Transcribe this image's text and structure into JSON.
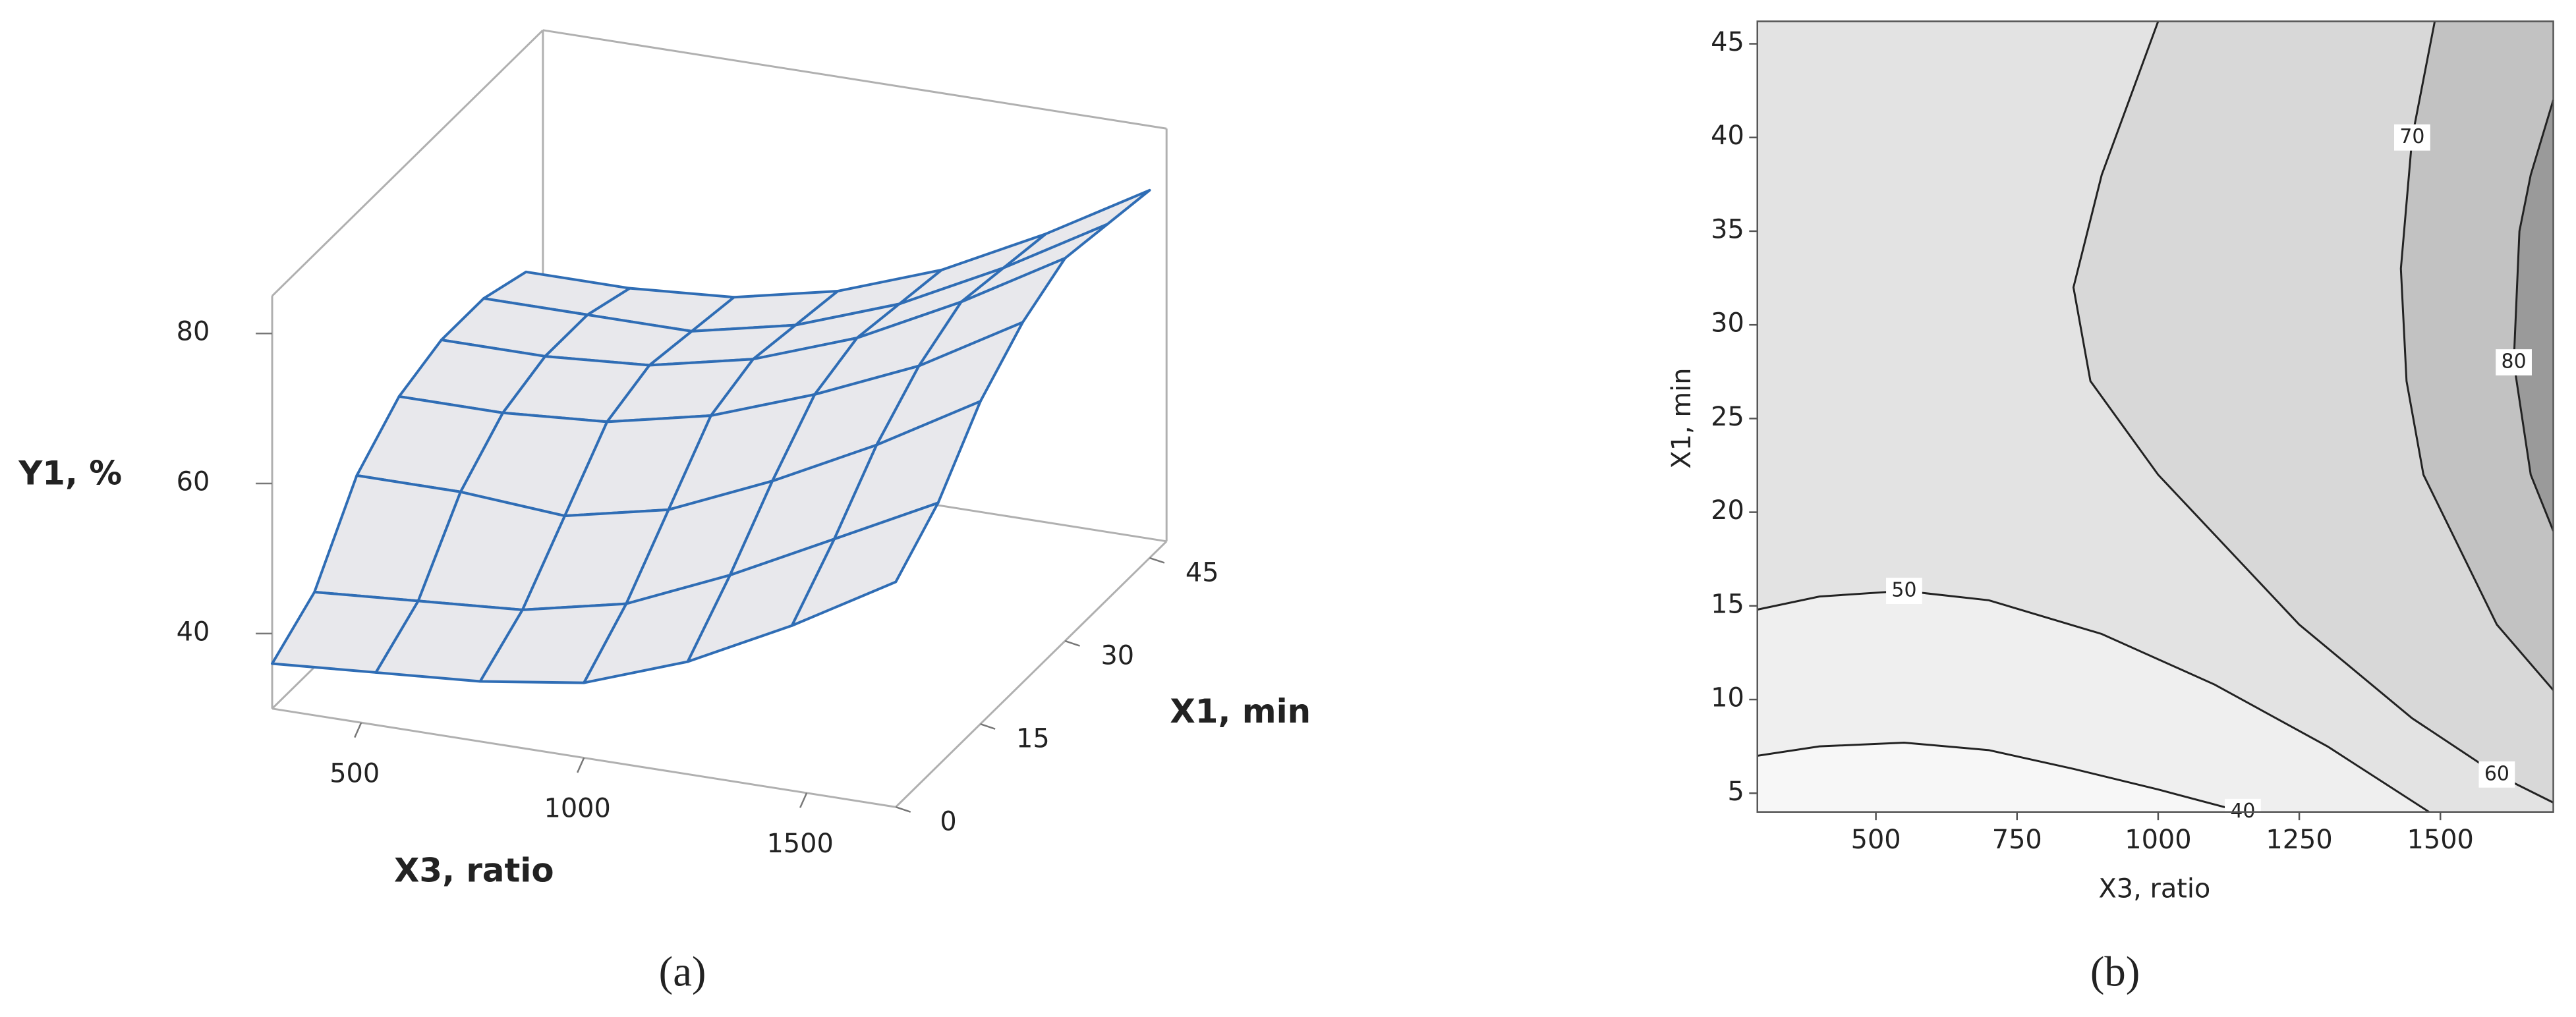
{
  "chart_data": [
    {
      "type": "surface",
      "caption": "(a)",
      "xlabel": "X3, ratio",
      "ylabel": "X1, min",
      "zlabel": "Y1, %",
      "x": [
        300,
        533,
        767,
        1000,
        1233,
        1467,
        1700
      ],
      "y": [
        0,
        7.5,
        15,
        22.5,
        30,
        37.5,
        45
      ],
      "z": [
        [
          36,
          37,
          38,
          40,
          45,
          52,
          60
        ],
        [
          40,
          41,
          42,
          45,
          51,
          58,
          65
        ],
        [
          50,
          50,
          49,
          52,
          58,
          65,
          73
        ],
        [
          55,
          55,
          56,
          59,
          64,
          70,
          78
        ],
        [
          57,
          57,
          58,
          61,
          66,
          73,
          81
        ],
        [
          57,
          57,
          57,
          60,
          65,
          72,
          80
        ],
        [
          55,
          55,
          56,
          59,
          64,
          71,
          79
        ]
      ],
      "xlim": [
        300,
        1700
      ],
      "ylim": [
        0,
        48
      ],
      "zlim": [
        30,
        85
      ],
      "xticks": [
        500,
        1000,
        1500
      ],
      "yticks": [
        0,
        15,
        30,
        45
      ],
      "zticks": [
        40,
        60,
        80
      ],
      "color": "#2f6db5",
      "surface_fill": "#e8e8ec"
    },
    {
      "type": "contour",
      "caption": "(b)",
      "xlabel": "X3, ratio",
      "ylabel": "X1, min",
      "xlim": [
        290,
        1700
      ],
      "ylim": [
        4,
        46.2
      ],
      "xticks": [
        500,
        750,
        1000,
        1250,
        1500
      ],
      "yticks": [
        5,
        10,
        15,
        20,
        25,
        30,
        35,
        40,
        45
      ],
      "background": "#e3e3e3",
      "line_color": "#222222",
      "contours": [
        {
          "level": 40,
          "fill": "#f7f7f7",
          "x": [
            290,
            400,
            550,
            700,
            850,
            1000,
            1150
          ],
          "y": [
            7,
            7.5,
            7.7,
            7.3,
            6.3,
            5.2,
            4
          ]
        },
        {
          "level": 50,
          "fill": "#efefef",
          "x": [
            290,
            400,
            550,
            700,
            900,
            1100,
            1300,
            1480
          ],
          "y": [
            14.8,
            15.5,
            15.8,
            15.3,
            13.5,
            10.8,
            7.5,
            4
          ]
        },
        {
          "level": 60,
          "fill": "#d8d8d8",
          "x": [
            1000,
            900,
            850,
            880,
            1000,
            1250,
            1450,
            1600,
            1700
          ],
          "y": [
            46.2,
            38,
            32,
            27,
            22,
            14,
            9,
            6,
            4.5
          ]
        },
        {
          "level": 70,
          "fill": "#c2c2c2",
          "x": [
            1490,
            1450,
            1430,
            1440,
            1470,
            1600,
            1700
          ],
          "y": [
            46.2,
            40,
            33,
            27,
            22,
            14,
            10.5
          ]
        },
        {
          "level": 80,
          "fill": "#9a9a9a",
          "x": [
            1700,
            1660,
            1640,
            1630,
            1660,
            1700
          ],
          "y": [
            42,
            38,
            35,
            28,
            22,
            19
          ]
        }
      ]
    }
  ]
}
